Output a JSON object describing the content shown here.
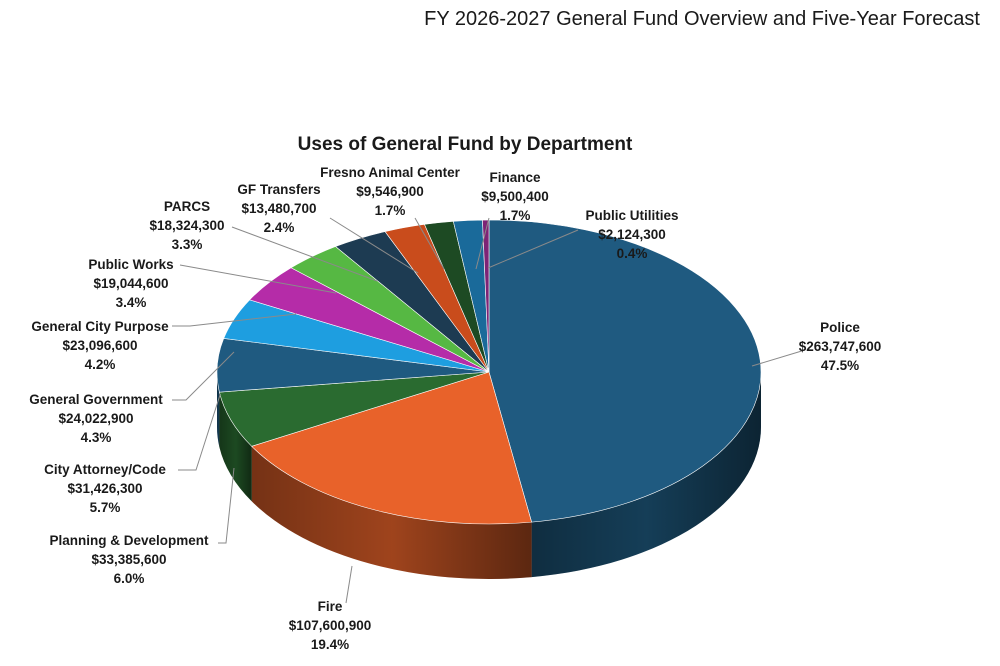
{
  "document": {
    "header": "FY 2026-2027 General Fund Overview and Five-Year Forecast"
  },
  "chart_data": {
    "type": "pie",
    "title": "Uses of General Fund by Department",
    "style": "3d",
    "slices": [
      {
        "label": "Police",
        "amount": "$263,747,600",
        "percent": "47.5%",
        "value": 263747600,
        "color": "#1f5a80"
      },
      {
        "label": "Fire",
        "amount": "$107,600,900",
        "percent": "19.4%",
        "value": 107600900,
        "color": "#e8622a"
      },
      {
        "label": "Planning & Development",
        "amount": "$33,385,600",
        "percent": "6.0%",
        "value": 33385600,
        "color": "#2a6b30"
      },
      {
        "label": "City Attorney/Code",
        "amount": "$31,426,300",
        "percent": "5.7%",
        "value": 31426300,
        "color": "#1f5a80"
      },
      {
        "label": "General Government",
        "amount": "$24,022,900",
        "percent": "4.3%",
        "value": 24022900,
        "color": "#1e9ee0"
      },
      {
        "label": "General City Purpose",
        "amount": "$23,096,600",
        "percent": "4.2%",
        "value": 23096600,
        "color": "#b52ca8"
      },
      {
        "label": "Public Works",
        "amount": "$19,044,600",
        "percent": "3.4%",
        "value": 19044600,
        "color": "#56b843"
      },
      {
        "label": "PARCS",
        "amount": "$18,324,300",
        "percent": "3.3%",
        "value": 18324300,
        "color": "#1d3b52"
      },
      {
        "label": "GF Transfers",
        "amount": "$13,480,700",
        "percent": "2.4%",
        "value": 13480700,
        "color": "#c94c1c"
      },
      {
        "label": "Fresno Animal Center",
        "amount": "$9,546,900",
        "percent": "1.7%",
        "value": 9546900,
        "color": "#1d4a23"
      },
      {
        "label": "Finance",
        "amount": "$9,500,400",
        "percent": "1.7%",
        "value": 9500400,
        "color": "#1a6a9a"
      },
      {
        "label": "Public Utilities",
        "amount": "$2,124,300",
        "percent": "0.4%",
        "value": 2124300,
        "color": "#7d2476"
      }
    ]
  }
}
